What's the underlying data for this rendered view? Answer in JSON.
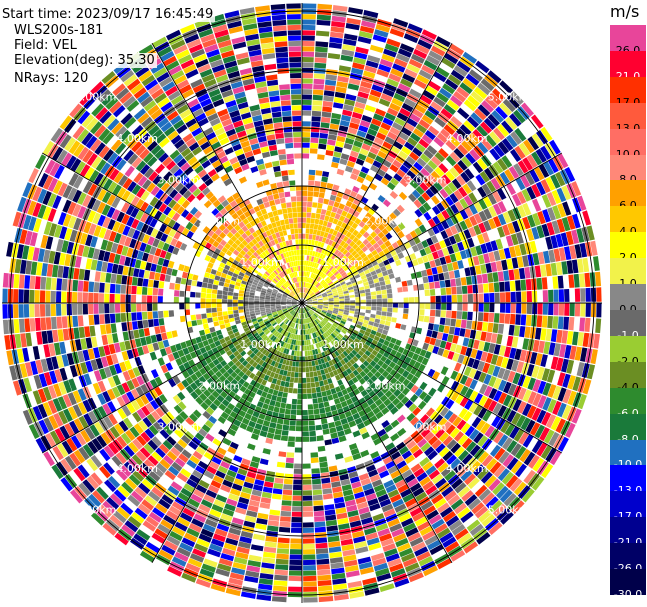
{
  "header": {
    "start_time": "Start time: 2023/09/17 16:45:49",
    "instrument": "WLS200s-181",
    "field": "Field: VEL",
    "elevation": "Elevation(deg): 35.30",
    "nrays": "NRays: 120"
  },
  "colorbar": {
    "units": "m/s",
    "levels": [
      {
        "label": "26.0",
        "color": "#e8459a"
      },
      {
        "label": "21.0",
        "color": "#ff0030"
      },
      {
        "label": "17.0",
        "color": "#ff3000"
      },
      {
        "label": "13.0",
        "color": "#ff5a3c"
      },
      {
        "label": "10.0",
        "color": "#ff6e64"
      },
      {
        "label": "8.0",
        "color": "#ff8878"
      },
      {
        "label": "6.0",
        "color": "#ffa000"
      },
      {
        "label": "4.0",
        "color": "#ffc800"
      },
      {
        "label": "2.0",
        "color": "#ffff00"
      },
      {
        "label": "1.0",
        "color": "#f2f24a"
      },
      {
        "label": "0.0",
        "color": "#888888"
      },
      {
        "label": "-1.0",
        "color": "#6a6a6a"
      },
      {
        "label": "-2.0",
        "color": "#9acd32"
      },
      {
        "label": "-4.0",
        "color": "#6b8e23"
      },
      {
        "label": "-6.0",
        "color": "#2e8b2e"
      },
      {
        "label": "-8.0",
        "color": "#1a7a3a"
      },
      {
        "label": "-10.0",
        "color": "#2070c0"
      },
      {
        "label": "-13.0",
        "color": "#0000ff"
      },
      {
        "label": "-17.0",
        "color": "#0000cc"
      },
      {
        "label": "-21.0",
        "color": "#000090"
      },
      {
        "label": "-26.0",
        "color": "#000066"
      },
      {
        "label": "-30.0",
        "color": "#00004a"
      }
    ]
  },
  "range_rings": {
    "ring_labels": [
      "1.00km",
      "2.00km",
      "3.00km",
      "4.00km",
      "5.00km",
      "6.00km"
    ]
  }
}
